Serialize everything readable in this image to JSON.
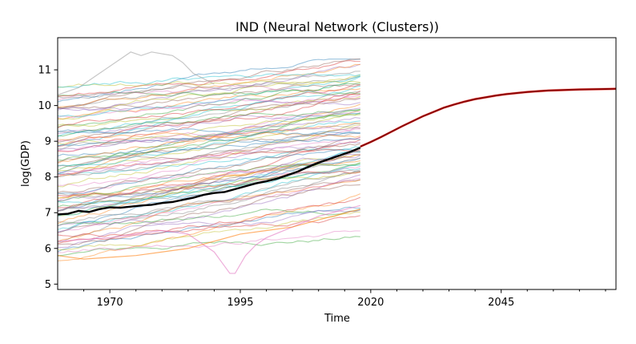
{
  "chart_data": {
    "type": "line",
    "title": "IND (Neural Network (Clusters))",
    "xlabel": "Time",
    "ylabel": "log(GDP)",
    "xlim": [
      1960,
      2067
    ],
    "ylim": [
      4.85,
      11.9
    ],
    "x_ticks": [
      1970,
      1995,
      2020,
      2045
    ],
    "y_ticks": [
      5,
      6,
      7,
      8,
      9,
      10,
      11
    ],
    "grid": false,
    "legend": "none",
    "colors": {
      "target_history": "#000000",
      "forecast": "#8b0000",
      "forecast_band": "#ff3b30",
      "background_palette": [
        "#1f77b4",
        "#ff7f0e",
        "#2ca02c",
        "#d62728",
        "#9467bd",
        "#8c564b",
        "#e377c2",
        "#7f7f7f",
        "#bcbd22",
        "#17becf"
      ]
    },
    "background_series_summary": {
      "count": 90,
      "x_range": [
        1960,
        2018
      ],
      "start_range": [
        5.8,
        10.4
      ],
      "end_range": [
        6.5,
        11.35
      ]
    },
    "series": [
      {
        "role": "target_history",
        "x": [
          1960,
          1962,
          1964,
          1966,
          1968,
          1970,
          1972,
          1974,
          1976,
          1978,
          1980,
          1982,
          1984,
          1986,
          1988,
          1990,
          1992,
          1994,
          1996,
          1998,
          2000,
          2002,
          2004,
          2006,
          2008,
          2010,
          2012,
          2014,
          2016,
          2018
        ],
        "values": [
          6.95,
          6.97,
          7.05,
          7.02,
          7.1,
          7.15,
          7.14,
          7.17,
          7.2,
          7.22,
          7.27,
          7.3,
          7.36,
          7.42,
          7.5,
          7.55,
          7.58,
          7.66,
          7.74,
          7.82,
          7.88,
          7.95,
          8.05,
          8.15,
          8.28,
          8.4,
          8.5,
          8.6,
          8.7,
          8.82
        ]
      },
      {
        "role": "forecast",
        "x": [
          2018,
          2020,
          2022,
          2024,
          2026,
          2028,
          2030,
          2032,
          2034,
          2036,
          2038,
          2040,
          2042,
          2044,
          2046,
          2048,
          2050,
          2052,
          2054,
          2056,
          2058,
          2060,
          2062,
          2064,
          2066,
          2067
        ],
        "values": [
          8.85,
          8.98,
          9.12,
          9.27,
          9.42,
          9.56,
          9.7,
          9.82,
          9.94,
          10.03,
          10.11,
          10.18,
          10.23,
          10.28,
          10.32,
          10.35,
          10.38,
          10.4,
          10.42,
          10.43,
          10.44,
          10.45,
          10.455,
          10.46,
          10.465,
          10.47
        ]
      }
    ],
    "highlight_series": [
      {
        "x": [
          1960,
          1964,
          1968,
          1972,
          1974,
          1976,
          1978,
          1980,
          1982,
          1984,
          1986,
          1990
        ],
        "values": [
          10.3,
          10.5,
          10.9,
          11.3,
          11.5,
          11.4,
          11.5,
          11.45,
          11.4,
          11.2,
          10.9,
          10.6
        ]
      },
      {
        "x": [
          1960,
          1970,
          1980,
          1985,
          1988,
          1990,
          1992,
          1993,
          1994,
          1996,
          1998,
          2000,
          2005,
          2010,
          2018
        ],
        "values": [
          6.2,
          6.3,
          6.5,
          6.4,
          6.1,
          5.9,
          5.5,
          5.3,
          5.3,
          5.8,
          6.1,
          6.3,
          6.6,
          6.9,
          7.2
        ]
      },
      {
        "x": [
          1960,
          1965,
          1970,
          1975,
          1980,
          1985,
          1990,
          1995,
          2000,
          2005,
          2010,
          2018
        ],
        "values": [
          5.8,
          5.7,
          5.75,
          5.8,
          5.9,
          6.0,
          6.2,
          6.4,
          6.5,
          6.6,
          6.8,
          7.1
        ]
      }
    ]
  }
}
